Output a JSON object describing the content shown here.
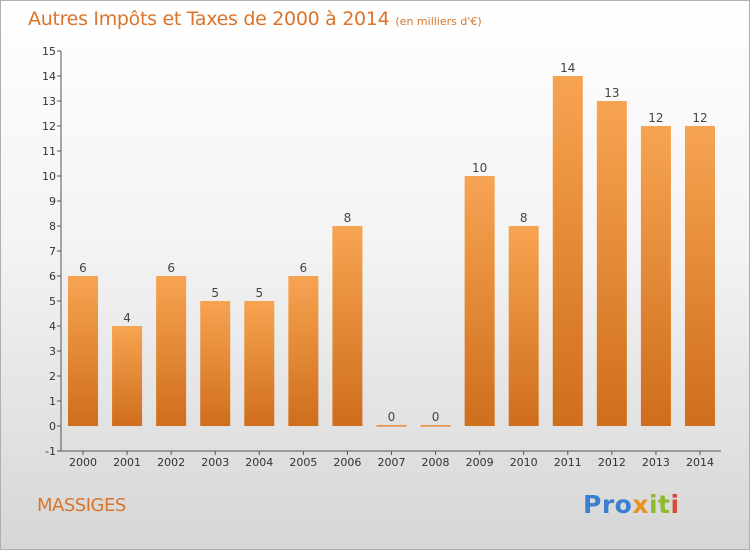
{
  "title": {
    "main": "Autres Impôts et Taxes de 2000 à 2014",
    "unit": "(en milliers d'€)"
  },
  "commune": "MASSIGES",
  "logo": {
    "text": "Proxiti",
    "parts": [
      "Pro",
      "x",
      "it",
      "i"
    ],
    "colors": [
      "#3b7fd0",
      "#e8921f",
      "#8dbb2c",
      "#d64a3a"
    ]
  },
  "colors": {
    "bar_light": "#f7a452",
    "bar_dark": "#cf6e1c",
    "text_accent": "#d9742a",
    "axis": "#555555"
  },
  "chart_data": {
    "type": "bar",
    "title": "Autres Impôts et Taxes de 2000 à 2014",
    "subtitle": "(en milliers d'€)",
    "categories": [
      "2000",
      "2001",
      "2002",
      "2003",
      "2004",
      "2005",
      "2006",
      "2007",
      "2008",
      "2009",
      "2010",
      "2011",
      "2012",
      "2013",
      "2014"
    ],
    "values": [
      6,
      4,
      6,
      5,
      5,
      6,
      8,
      0,
      0,
      10,
      8,
      14,
      13,
      12,
      12
    ],
    "ylim": [
      -1,
      15
    ],
    "yticks": [
      -1,
      0,
      1,
      2,
      3,
      4,
      5,
      6,
      7,
      8,
      9,
      10,
      11,
      12,
      13,
      14,
      15
    ],
    "grid": false,
    "data_labels": true,
    "xlabel": "",
    "ylabel": ""
  }
}
